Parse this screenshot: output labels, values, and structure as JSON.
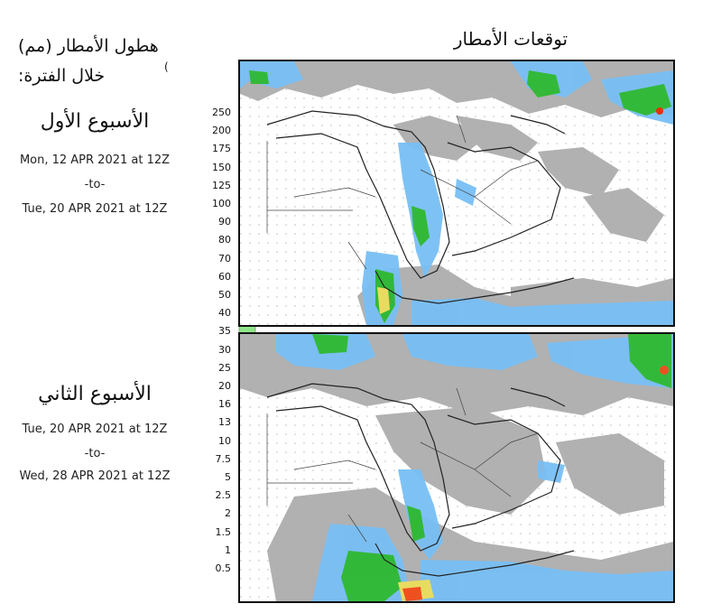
{
  "main_title": "توقعات الأمطار",
  "legend": {
    "title_line1": "هطول الأمطار (مم)",
    "title_line2": "خلال الفترة:",
    "title_mark": "(",
    "ticks": [
      "250",
      "200",
      "175",
      "150",
      "125",
      "100",
      "90",
      "80",
      "70",
      "60",
      "50",
      "40",
      "35",
      "30",
      "25",
      "20",
      "16",
      "13",
      "10",
      "7.5",
      "5",
      "2.5",
      "2",
      "1.5",
      "1",
      "0.5"
    ],
    "colors": [
      "#7a0000",
      "#a00000",
      "#cc1a00",
      "#e83000",
      "#f25500",
      "#f57a00",
      "#f79800",
      "#f5b800",
      "#f2d400",
      "#eaea50",
      "#d0f090",
      "#b0eea0",
      "#8fe68a",
      "#5fd65f",
      "#2fb82f",
      "#158f15",
      "#1a5fd0",
      "#2c7fe8",
      "#4a9ff0",
      "#78bff5",
      "#a8dcfa",
      "#cdeefc",
      "#6e6e6e",
      "#8c8c8c",
      "#a8a8a8",
      "#c8c8c8"
    ]
  },
  "weeks": [
    {
      "title": "الأسبوع الأول",
      "start": "Mon, 12 APR 2021 at 12Z",
      "sep": "-to-",
      "end": "Tue, 20 APR 2021 at 12Z"
    },
    {
      "title": "الأسبوع الثاني",
      "start": "Tue, 20 APR 2021 at 12Z",
      "sep": "-to-",
      "end": "Wed, 28 APR 2021 at 12Z"
    }
  ]
}
